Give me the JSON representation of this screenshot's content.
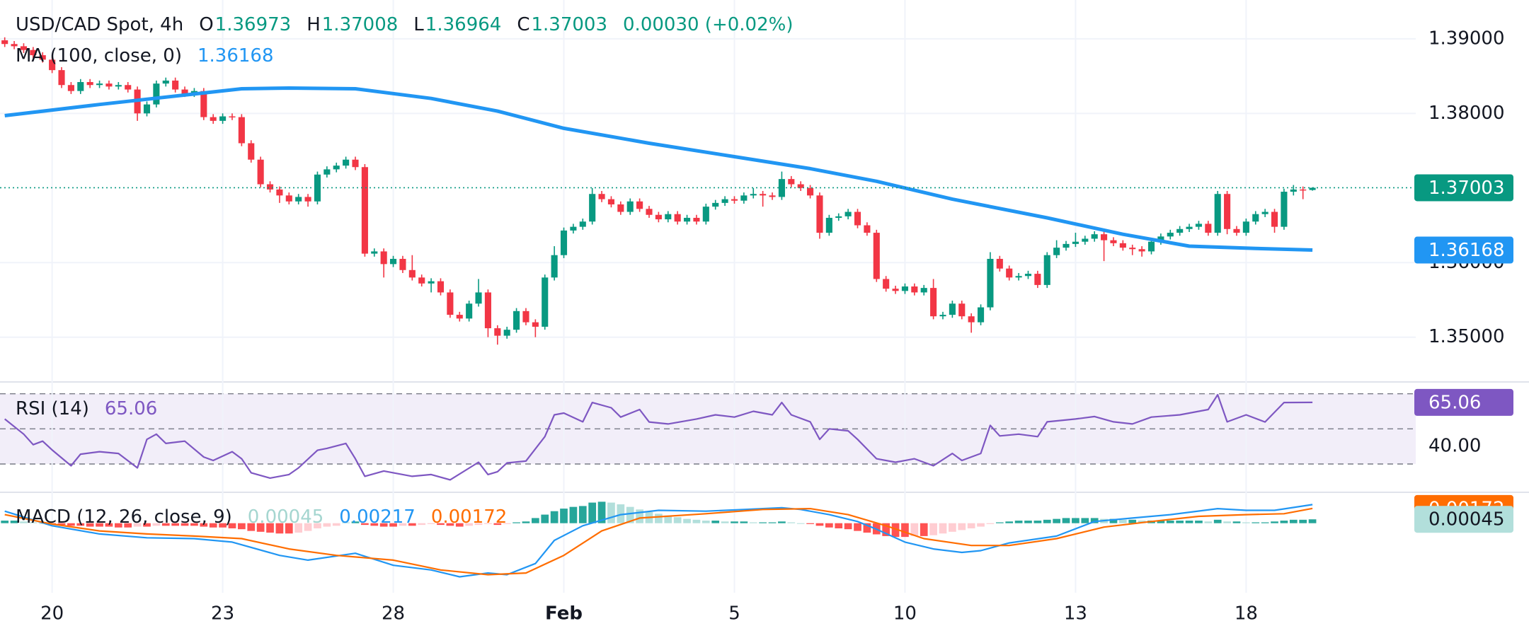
{
  "chart_data": [
    {
      "type": "candlestick",
      "title": "USD/CAD Spot, 4h",
      "ohlc_keys": [
        "O",
        "H",
        "L",
        "C"
      ],
      "change_label": "0.00030 (+0.02%)",
      "up_color": "#089981",
      "down_color": "#f23645",
      "open": [
        1.3898,
        1.3893,
        1.389,
        1.3885,
        1.3878,
        1.3872,
        1.3858,
        1.3838,
        1.383,
        1.3842,
        1.3838,
        1.384,
        1.3836,
        1.3838,
        1.3832,
        1.38,
        1.3812,
        1.384,
        1.3844,
        1.3832,
        1.3826,
        1.383,
        1.3795,
        1.379,
        1.3796,
        1.3795,
        1.376,
        1.3738,
        1.3705,
        1.3698,
        1.369,
        1.3682,
        1.3688,
        1.3682,
        1.3718,
        1.3725,
        1.373,
        1.3738,
        1.3728,
        1.3612,
        1.3615,
        1.3598,
        1.3605,
        1.359,
        1.358,
        1.3572,
        1.3575,
        1.356,
        1.353,
        1.3525,
        1.3545,
        1.356,
        1.3512,
        1.3502,
        1.351,
        1.3535,
        1.352,
        1.3514,
        1.358,
        1.361,
        1.3643,
        1.3648,
        1.3655,
        1.3692,
        1.3685,
        1.3678,
        1.3668,
        1.3682,
        1.3672,
        1.3664,
        1.3658,
        1.3665,
        1.3655,
        1.366,
        1.3655,
        1.3675,
        1.368,
        1.3685,
        1.3683,
        1.369,
        1.3692,
        1.369,
        1.3688,
        1.3712,
        1.3705,
        1.37,
        1.369,
        1.364,
        1.366,
        1.3662,
        1.3668,
        1.365,
        1.364,
        1.3578,
        1.3565,
        1.3562,
        1.3568,
        1.356,
        1.3566,
        1.3528,
        1.353,
        1.3545,
        1.3528,
        1.352,
        1.354,
        1.3605,
        1.3592,
        1.358,
        1.3582,
        1.3585,
        1.357,
        1.361,
        1.362,
        1.3625,
        1.3628,
        1.3632,
        1.3638,
        1.363,
        1.3626,
        1.362,
        1.3618,
        1.3615,
        1.3628,
        1.3635,
        1.364,
        1.3645,
        1.3648,
        1.3652,
        1.364,
        1.3692,
        1.3645,
        1.364,
        1.3655,
        1.3665,
        1.3668,
        1.3648,
        1.3695,
        1.3698,
        1.36973
      ],
      "high": [
        1.3902,
        1.3897,
        1.3894,
        1.3889,
        1.3882,
        1.3876,
        1.3862,
        1.3842,
        1.3846,
        1.3846,
        1.3844,
        1.3844,
        1.3842,
        1.3842,
        1.3836,
        1.3816,
        1.3844,
        1.3848,
        1.3848,
        1.3836,
        1.3834,
        1.3834,
        1.3799,
        1.38,
        1.38,
        1.3799,
        1.3764,
        1.3742,
        1.3709,
        1.3702,
        1.3694,
        1.3692,
        1.3692,
        1.3722,
        1.3729,
        1.3734,
        1.3742,
        1.3742,
        1.3732,
        1.3619,
        1.3619,
        1.3609,
        1.3609,
        1.361,
        1.3584,
        1.3579,
        1.3579,
        1.3564,
        1.3534,
        1.3549,
        1.3578,
        1.3564,
        1.3516,
        1.3514,
        1.3539,
        1.3539,
        1.3524,
        1.3584,
        1.3622,
        1.3647,
        1.3652,
        1.3659,
        1.37,
        1.3696,
        1.3689,
        1.3682,
        1.3686,
        1.3686,
        1.3676,
        1.3668,
        1.3669,
        1.3669,
        1.3664,
        1.3664,
        1.3679,
        1.3684,
        1.3689,
        1.3689,
        1.3694,
        1.37,
        1.3696,
        1.3694,
        1.3722,
        1.3716,
        1.3709,
        1.3704,
        1.3694,
        1.3664,
        1.3666,
        1.3672,
        1.3672,
        1.3654,
        1.3644,
        1.3582,
        1.3569,
        1.3572,
        1.3572,
        1.357,
        1.3578,
        1.3534,
        1.3549,
        1.3549,
        1.3532,
        1.3544,
        1.3614,
        1.3609,
        1.3596,
        1.3586,
        1.3589,
        1.3589,
        1.3614,
        1.363,
        1.3629,
        1.364,
        1.3636,
        1.3642,
        1.3642,
        1.3634,
        1.363,
        1.3624,
        1.3622,
        1.3632,
        1.3639,
        1.3644,
        1.3649,
        1.3652,
        1.3656,
        1.3656,
        1.3696,
        1.3696,
        1.3649,
        1.3659,
        1.3669,
        1.3672,
        1.3672,
        1.3699,
        1.3704,
        1.3702,
        1.37008
      ],
      "low": [
        1.3889,
        1.3886,
        1.3881,
        1.3874,
        1.3868,
        1.3854,
        1.3834,
        1.3826,
        1.3826,
        1.3834,
        1.3834,
        1.3832,
        1.3832,
        1.3828,
        1.379,
        1.3796,
        1.3808,
        1.3836,
        1.3828,
        1.3822,
        1.3822,
        1.3791,
        1.3786,
        1.3786,
        1.3791,
        1.3756,
        1.3734,
        1.3701,
        1.3694,
        1.368,
        1.3678,
        1.3678,
        1.3675,
        1.3678,
        1.3714,
        1.3721,
        1.3726,
        1.3724,
        1.3608,
        1.3608,
        1.358,
        1.3594,
        1.3586,
        1.3576,
        1.3568,
        1.356,
        1.3556,
        1.3526,
        1.3521,
        1.3521,
        1.3541,
        1.35,
        1.349,
        1.3498,
        1.3506,
        1.3516,
        1.35,
        1.351,
        1.3576,
        1.3606,
        1.3639,
        1.3644,
        1.3651,
        1.3681,
        1.3674,
        1.3664,
        1.3664,
        1.3668,
        1.366,
        1.3654,
        1.3654,
        1.3651,
        1.3651,
        1.3651,
        1.3651,
        1.3671,
        1.3676,
        1.3679,
        1.3679,
        1.3686,
        1.3675,
        1.3684,
        1.3684,
        1.3701,
        1.3696,
        1.3686,
        1.3632,
        1.3636,
        1.3656,
        1.3658,
        1.3646,
        1.3636,
        1.3574,
        1.3561,
        1.3558,
        1.3558,
        1.3556,
        1.3556,
        1.3524,
        1.3524,
        1.3526,
        1.3524,
        1.3506,
        1.3516,
        1.3536,
        1.3588,
        1.3576,
        1.3576,
        1.3578,
        1.3566,
        1.3566,
        1.3606,
        1.3616,
        1.3621,
        1.3624,
        1.3628,
        1.3602,
        1.3622,
        1.3616,
        1.361,
        1.3608,
        1.3611,
        1.3624,
        1.3631,
        1.3636,
        1.3641,
        1.3644,
        1.3636,
        1.3636,
        1.3638,
        1.3636,
        1.3636,
        1.3651,
        1.3661,
        1.364,
        1.3644,
        1.369,
        1.3685,
        1.36964
      ],
      "close": [
        1.3893,
        1.389,
        1.3885,
        1.3878,
        1.3872,
        1.3858,
        1.3838,
        1.383,
        1.3842,
        1.3838,
        1.384,
        1.3836,
        1.3838,
        1.3832,
        1.38,
        1.3812,
        1.384,
        1.3844,
        1.3832,
        1.3826,
        1.383,
        1.3795,
        1.379,
        1.3796,
        1.3795,
        1.376,
        1.3738,
        1.3705,
        1.3698,
        1.369,
        1.3682,
        1.3688,
        1.3682,
        1.3718,
        1.3725,
        1.373,
        1.3738,
        1.3728,
        1.3612,
        1.3615,
        1.3598,
        1.3605,
        1.359,
        1.358,
        1.3572,
        1.3575,
        1.356,
        1.353,
        1.3525,
        1.3545,
        1.356,
        1.3512,
        1.3502,
        1.351,
        1.3535,
        1.352,
        1.3514,
        1.358,
        1.361,
        1.3643,
        1.3648,
        1.3655,
        1.3692,
        1.3685,
        1.3678,
        1.3668,
        1.3682,
        1.3672,
        1.3664,
        1.3658,
        1.3665,
        1.3655,
        1.366,
        1.3655,
        1.3675,
        1.368,
        1.3685,
        1.3683,
        1.369,
        1.3692,
        1.369,
        1.3688,
        1.3712,
        1.3705,
        1.37,
        1.369,
        1.364,
        1.366,
        1.3662,
        1.3668,
        1.365,
        1.364,
        1.3578,
        1.3565,
        1.3562,
        1.3568,
        1.356,
        1.3566,
        1.3528,
        1.353,
        1.3545,
        1.3528,
        1.352,
        1.354,
        1.3605,
        1.3592,
        1.358,
        1.3582,
        1.3585,
        1.357,
        1.361,
        1.362,
        1.3625,
        1.3628,
        1.3632,
        1.3638,
        1.363,
        1.3626,
        1.362,
        1.3618,
        1.3615,
        1.3628,
        1.3635,
        1.364,
        1.3645,
        1.3648,
        1.3652,
        1.364,
        1.3692,
        1.3645,
        1.364,
        1.3655,
        1.3665,
        1.3668,
        1.3648,
        1.3695,
        1.3698,
        1.36973,
        1.37003
      ],
      "xlim": [
        -0.5,
        148.9
      ],
      "ylim": [
        1.344,
        1.3952
      ],
      "yticks": [
        {
          "value": 1.35,
          "label": "1.35000"
        },
        {
          "value": 1.36,
          "label": "1.36000"
        },
        {
          "value": 1.38,
          "label": "1.38000"
        },
        {
          "value": 1.39,
          "label": "1.39000"
        }
      ],
      "grid": true,
      "overlays": [
        {
          "title": "MA (100, close, 0)",
          "color": "#2196f3",
          "x": [
            0,
            10,
            20,
            25,
            30,
            37,
            45,
            52,
            59,
            68,
            77,
            85,
            92,
            100,
            110,
            118,
            125,
            132,
            138
          ],
          "values": [
            1.3797,
            1.3812,
            1.3826,
            1.3833,
            1.3834,
            1.3833,
            1.382,
            1.3803,
            1.378,
            1.376,
            1.3742,
            1.3726,
            1.3709,
            1.3685,
            1.366,
            1.3638,
            1.3622,
            1.3619,
            1.36168
          ]
        }
      ]
    },
    {
      "type": "line",
      "title": "RSI (14)",
      "color": "#7e57c2",
      "bands": [
        30,
        50,
        70
      ],
      "x": [
        0,
        2,
        3,
        4,
        5,
        7,
        8,
        10,
        12,
        14,
        15,
        16,
        17,
        19,
        21,
        22,
        24,
        25,
        26,
        28,
        30,
        31,
        33,
        34,
        36,
        37,
        38,
        40,
        43,
        45,
        47,
        50,
        51,
        52,
        53,
        55,
        57,
        58,
        59,
        61,
        62,
        64,
        65,
        67,
        68,
        70,
        73,
        75,
        77,
        79,
        81,
        82,
        83,
        85,
        86,
        87,
        89,
        90,
        92,
        94,
        96,
        98,
        100,
        101,
        103,
        104,
        105,
        107,
        109,
        110,
        113,
        115,
        117,
        119,
        121,
        124,
        127,
        128,
        129,
        131,
        133,
        135,
        138
      ],
      "values": [
        55.6,
        47,
        41,
        43,
        38,
        29,
        35.6,
        37,
        36,
        27.8,
        44,
        47,
        41.7,
        43,
        34,
        32,
        37,
        33,
        25,
        22,
        24,
        27.8,
        37.8,
        38.9,
        41.7,
        33,
        23,
        26,
        23,
        24,
        21,
        31,
        24,
        25.6,
        30.6,
        31.7,
        45.6,
        58,
        59,
        54,
        65,
        62,
        56.7,
        61,
        53.9,
        52.8,
        55.6,
        58,
        56.7,
        60,
        58,
        65,
        58,
        54,
        44,
        50,
        48.9,
        44,
        33,
        31,
        33,
        29,
        36,
        32,
        36,
        52,
        46,
        47,
        45.6,
        54,
        55.6,
        57,
        54,
        52.8,
        56.7,
        58,
        61,
        69.4,
        54,
        58,
        53.9,
        65,
        65.06
      ],
      "xlim": [
        -0.5,
        148.9
      ],
      "ylim": [
        13.9,
        76.7
      ],
      "yticks": [
        {
          "value": 40,
          "label": "40.00"
        }
      ]
    },
    {
      "type": "macd",
      "title": "MACD (12, 26, close, 9)",
      "histogram": [
        0.0003,
        0.0003,
        0.0002,
        0.0001,
        0,
        -0.0001,
        -0.0002,
        -0.0003,
        -0.0003,
        -0.0004,
        -0.0004,
        -0.0004,
        -0.0005,
        -0.0005,
        -0.0004,
        -0.0004,
        -0.0003,
        -0.0003,
        -0.0003,
        -0.0003,
        -0.0003,
        -0.0004,
        -0.0005,
        -0.0005,
        -0.0006,
        -0.0007,
        -0.0009,
        -0.001,
        -0.0011,
        -0.0012,
        -0.0012,
        -0.0011,
        -0.0009,
        -0.0006,
        -0.0004,
        -0.0003,
        0.0001,
        0.0002,
        -0.0002,
        -0.0003,
        -0.0004,
        -0.0004,
        -0.0003,
        -0.0003,
        -0.0002,
        -0.0001,
        -0.0002,
        -0.0003,
        -0.0004,
        -0.0003,
        -0.0002,
        -0.0001,
        -0.0002,
        -0.0001,
        0.0001,
        0.0002,
        0.0006,
        0.001,
        0.0014,
        0.0017,
        0.0019,
        0.002,
        0.0024,
        0.0025,
        0.0024,
        0.0022,
        0.0019,
        0.0016,
        0.0013,
        0.0011,
        0.0009,
        0.0007,
        0.0005,
        0.0004,
        0.0003,
        0.0003,
        0.0002,
        0.0002,
        0.0002,
        0.0001,
        0.0001,
        0.0001,
        0.0002,
        0.0001,
        0,
        -0.0001,
        -0.0003,
        -0.0005,
        -0.0006,
        -0.0007,
        -0.0009,
        -0.0011,
        -0.0013,
        -0.0015,
        -0.0016,
        -0.0016,
        -0.0015,
        -0.0015,
        -0.0014,
        -0.0012,
        -0.001,
        -0.0008,
        -0.0006,
        -0.0004,
        -0.0001,
        0.0001,
        0.0002,
        0.0003,
        0.0003,
        0.0003,
        0.0004,
        0.0005,
        0.0006,
        0.0006,
        0.0006,
        0.0006,
        0.0005,
        0.0005,
        0.0004,
        0.0004,
        0.0003,
        0.0003,
        0.0003,
        0.0003,
        0.0003,
        0.0003,
        0.0003,
        0.0002,
        0.0004,
        0.0002,
        0.0002,
        0.0001,
        0.0001,
        0.0001,
        0.0002,
        0.0003,
        0.0004,
        0.0004,
        0.00045
      ],
      "histogram_colors": [
        "#26a69a",
        "#b2dfdb",
        "#ff5252",
        "#ffcdd2"
      ],
      "series": [
        {
          "color": "#2196f3",
          "x": [
            0,
            5,
            10,
            15,
            20,
            24,
            29,
            32,
            37,
            41,
            45,
            48,
            51,
            53,
            56,
            58,
            61,
            65,
            69,
            74,
            78,
            82,
            84,
            87,
            90,
            92,
            95,
            98,
            101,
            103,
            106,
            111,
            115,
            119,
            123,
            128,
            131,
            134,
            138
          ],
          "values": [
            0.0014,
            -0.0003,
            -0.00125,
            -0.0017,
            -0.0018,
            -0.0022,
            -0.00375,
            -0.0043,
            -0.0035,
            -0.0049,
            -0.00545,
            -0.00625,
            -0.0058,
            -0.006,
            -0.0047,
            -0.002,
            -0.0003,
            0.001,
            0.0015,
            0.0014,
            0.0016,
            0.0018,
            0.0016,
            0.001,
            0.0002,
            -0.0007,
            -0.0022,
            -0.003,
            -0.0034,
            -0.0032,
            -0.0023,
            -0.0015,
            0.0002,
            0.0006,
            0.001,
            0.0017,
            0.0015,
            0.0015,
            0.00217
          ]
        },
        {
          "color": "#ff6d00",
          "x": [
            0,
            5,
            10,
            15,
            20,
            25,
            30,
            35,
            41,
            46,
            51,
            55,
            59,
            63,
            67,
            74,
            80,
            85,
            89,
            93,
            97,
            102,
            106,
            111,
            116,
            121,
            126,
            131,
            135,
            138
          ],
          "values": [
            0.001,
            -0.0001,
            -0.0009,
            -0.00125,
            -0.0015,
            -0.0018,
            -0.003,
            -0.00375,
            -0.0043,
            -0.00545,
            -0.006,
            -0.0058,
            -0.00375,
            -0.0009,
            0.0006,
            0.0011,
            0.0016,
            0.0017,
            0.001,
            -0.0003,
            -0.0018,
            -0.0026,
            -0.0026,
            -0.0018,
            -0.00045,
            0.0002,
            0.0008,
            0.001,
            0.0011,
            0.00172
          ]
        }
      ],
      "xlim": [
        -0.5,
        148.9
      ],
      "ylim": [
        -0.0081,
        0.0036
      ],
      "xticks": [
        {
          "value": 5,
          "label": "20"
        },
        {
          "value": 23,
          "label": "23"
        },
        {
          "value": 41,
          "label": "28"
        },
        {
          "value": 59,
          "label": "Feb"
        },
        {
          "value": 77,
          "label": "5"
        },
        {
          "value": 95,
          "label": "10"
        },
        {
          "value": 113,
          "label": "13"
        },
        {
          "value": 131,
          "label": "18"
        }
      ]
    }
  ]
}
